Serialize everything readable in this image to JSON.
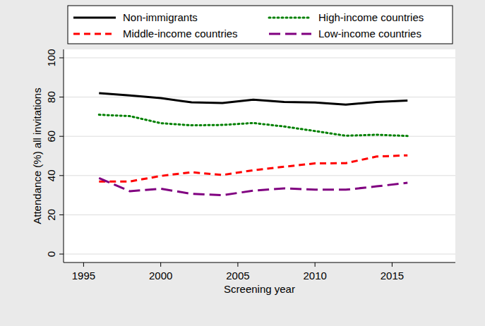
{
  "chart_data": {
    "type": "line",
    "x_label": "Screening year",
    "y_label": "Attendance (%) all invitations",
    "x": [
      1996,
      1998,
      2000,
      2002,
      2004,
      2006,
      2008,
      2010,
      2012,
      2014,
      2016
    ],
    "series": [
      {
        "name": "Non-immigrants",
        "color": "#000000",
        "line_style": "solid",
        "values": [
          82,
          80.8,
          79.5,
          77.3,
          77,
          78.7,
          77.5,
          77.2,
          76.2,
          77.5,
          78.2
        ]
      },
      {
        "name": "High-income countries",
        "color": "#008000",
        "line_style": "dotted",
        "values": [
          71,
          70.3,
          66.7,
          65.6,
          65.8,
          66.8,
          65,
          62.7,
          60.3,
          60.8,
          60.2
        ]
      },
      {
        "name": "Middle-income countries",
        "color": "#ff0000",
        "line_style": "dashed",
        "values": [
          37,
          37,
          39.8,
          41.7,
          40.3,
          42.7,
          44.5,
          46.2,
          46.3,
          49.7,
          50.3
        ]
      },
      {
        "name": "Low-income countries",
        "color": "#800080",
        "line_style": "longdash",
        "values": [
          38.7,
          32,
          33.3,
          30.7,
          30,
          32.3,
          33.5,
          32.8,
          32.8,
          34.5,
          36.3
        ]
      }
    ],
    "xlim": [
      1993.7,
      2019.1
    ],
    "xticks": [
      1995,
      2000,
      2005,
      2010,
      2015
    ],
    "ylim": [
      -4.3,
      104.3
    ],
    "yticks": [
      0,
      20,
      40,
      60,
      80,
      100
    ],
    "grid": true,
    "legend": "top"
  }
}
